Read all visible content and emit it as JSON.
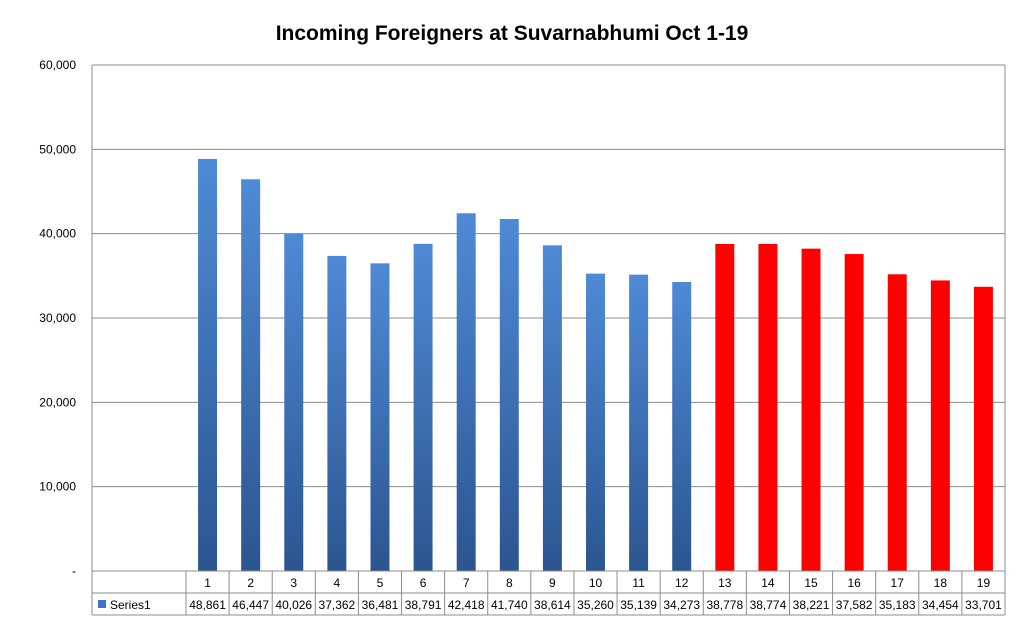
{
  "chart_data": {
    "type": "bar",
    "title": "Incoming Foreigners at Suvarnabhumi Oct 1-19",
    "categories": [
      "1",
      "2",
      "3",
      "4",
      "5",
      "6",
      "7",
      "8",
      "9",
      "10",
      "11",
      "12",
      "13",
      "14",
      "15",
      "16",
      "17",
      "18",
      "19"
    ],
    "series": [
      {
        "name": "Series1",
        "values": [
          48861,
          46447,
          40026,
          37362,
          36481,
          38791,
          42418,
          41740,
          38614,
          35260,
          35139,
          34273,
          38778,
          38774,
          38221,
          37582,
          35183,
          34454,
          33701
        ],
        "value_labels": [
          "48,861",
          "46,447",
          "40,026",
          "37,362",
          "36,481",
          "38,791",
          "42,418",
          "41,740",
          "38,614",
          "35,260",
          "35,139",
          "34,273",
          "38,778",
          "38,774",
          "38,221",
          "37,582",
          "35,183",
          "34,454",
          "33,701"
        ]
      }
    ],
    "ylim": [
      0,
      60000
    ],
    "y_ticks": [
      0,
      10000,
      20000,
      30000,
      40000,
      50000,
      60000
    ],
    "y_tick_labels": [
      "-",
      "10,000",
      "20,000",
      "30,000",
      "40,000",
      "50,000",
      "60,000"
    ],
    "grid": true,
    "legend": "data-table-left",
    "colors": {
      "blue_light": "#4f8ad6",
      "blue_dark": "#2b5590",
      "red": "#ff0000",
      "red_from_category": "13"
    }
  }
}
